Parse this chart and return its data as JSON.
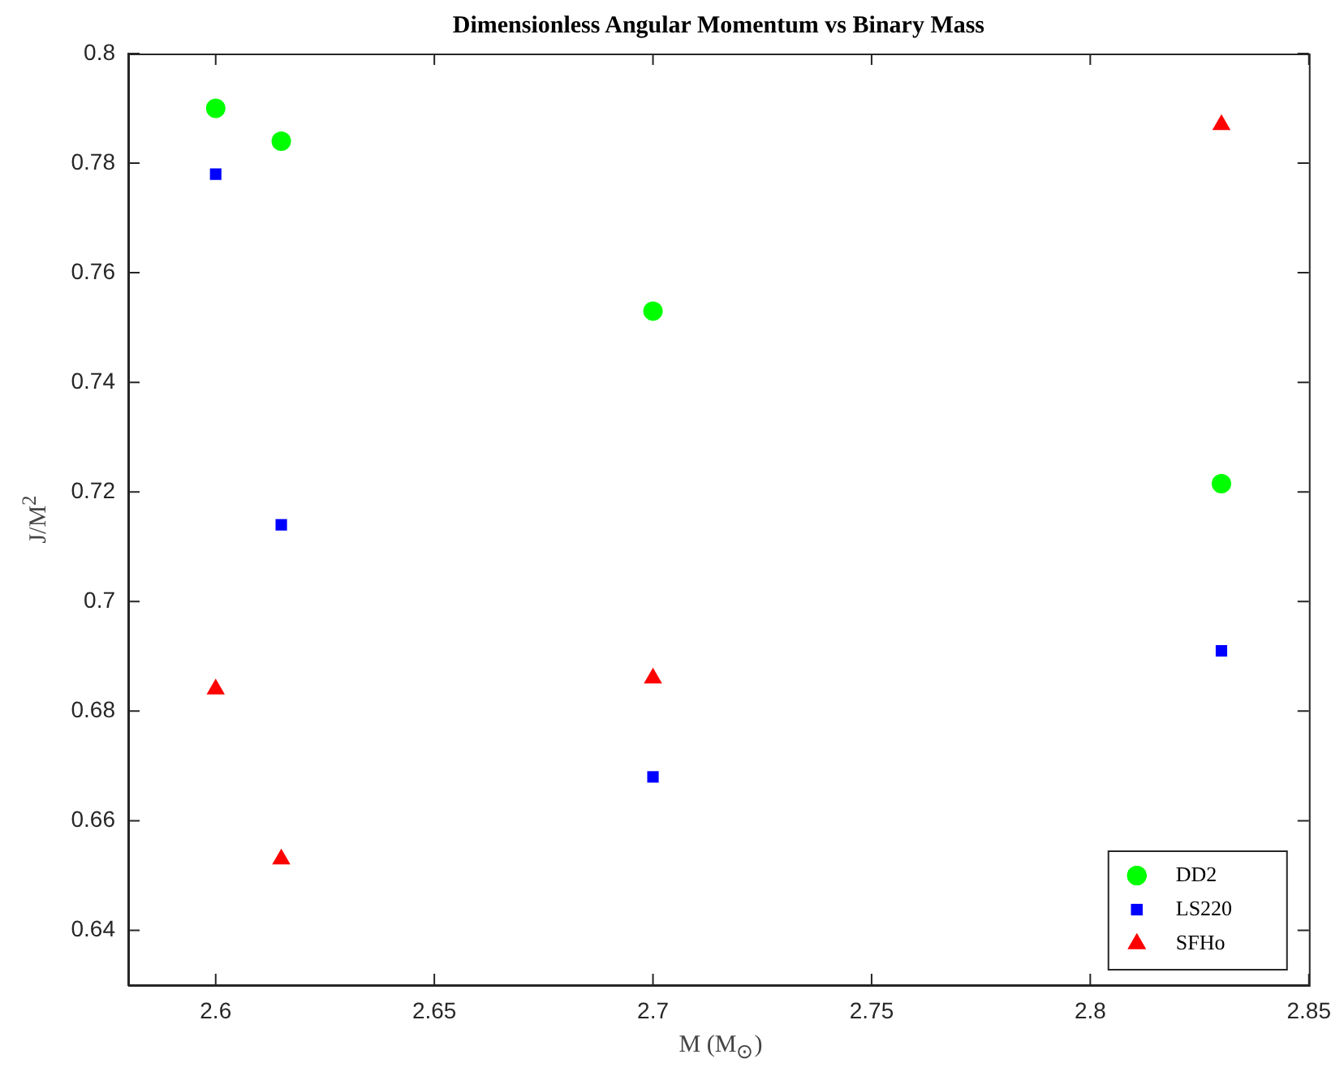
{
  "chart_data": {
    "type": "scatter",
    "title": "Dimensionless Angular Momentum vs Binary Mass",
    "xlabel": "M (M$_{⊙}$)",
    "ylabel": "J/M$^{2}$",
    "xlim": [
      2.58,
      2.85
    ],
    "xticks": [
      2.6,
      2.65,
      2.7,
      2.75,
      2.8,
      2.85
    ],
    "ylim": [
      0.63,
      0.8
    ],
    "yticks": [
      0.64,
      0.66,
      0.68,
      0.7,
      0.72,
      0.74,
      0.76,
      0.78,
      0.8
    ],
    "grid": false,
    "legend": "bottom right",
    "series": [
      {
        "name": "DD2",
        "color": "#00ff00",
        "marker": "circle",
        "x": [
          2.6,
          2.615,
          2.7,
          2.83
        ],
        "values": [
          0.79,
          0.784,
          0.753,
          0.7215
        ]
      },
      {
        "name": "LS220",
        "color": "#0000ff",
        "marker": "square",
        "x": [
          2.6,
          2.615,
          2.7,
          2.83
        ],
        "values": [
          0.778,
          0.714,
          0.668,
          0.691
        ]
      },
      {
        "name": "SFHo",
        "color": "#ff0000",
        "marker": "triangle",
        "x": [
          2.6,
          2.615,
          2.7,
          2.83
        ],
        "values": [
          0.684,
          0.653,
          0.686,
          0.787
        ]
      }
    ]
  }
}
